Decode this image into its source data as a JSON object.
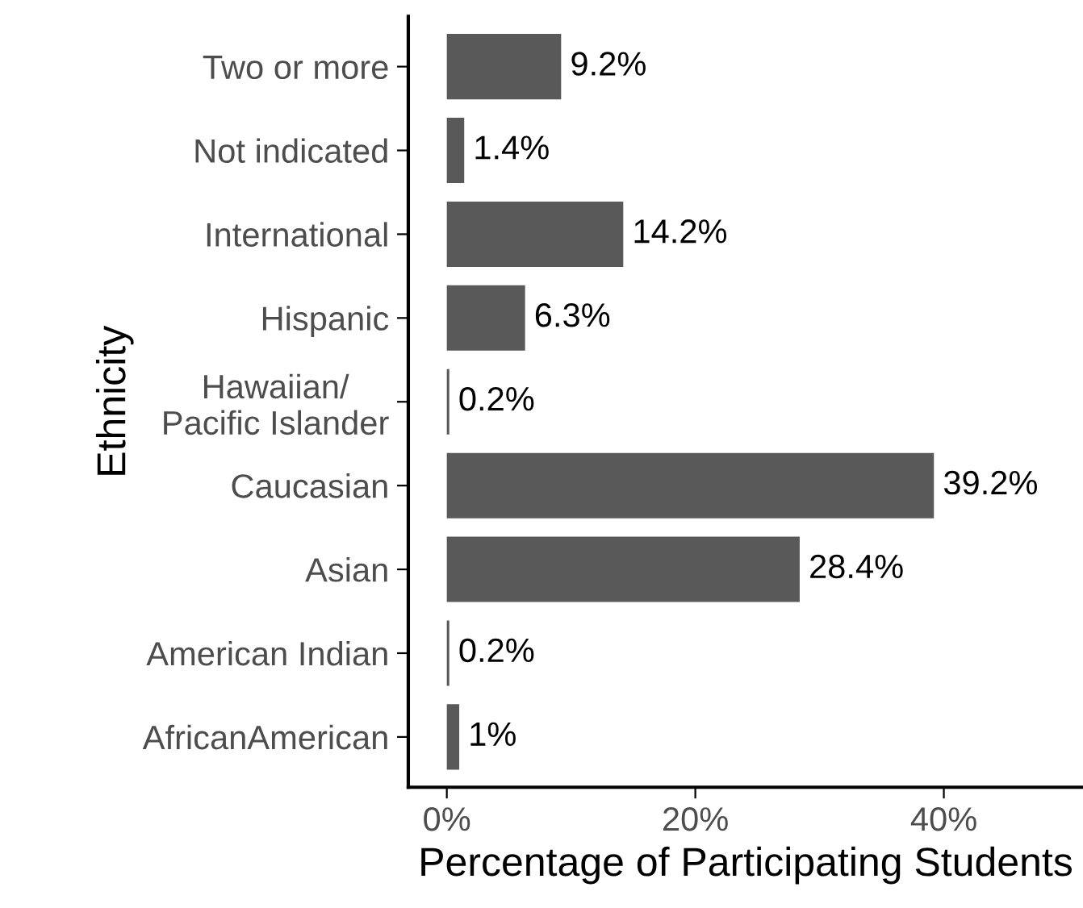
{
  "chart_data": {
    "type": "bar",
    "orientation": "horizontal",
    "xlabel": "Percentage of Participating Students",
    "ylabel": "Ethnicity",
    "categories": [
      "Two or more",
      "Not indicated",
      "International",
      "Hispanic",
      "Hawaiian/\nPacific Islander",
      "Caucasian",
      "Asian",
      "American Indian",
      "AfricanAmerican"
    ],
    "values": [
      9.2,
      1.4,
      14.2,
      6.3,
      0.2,
      39.2,
      28.4,
      0.2,
      1
    ],
    "value_labels": [
      "9.2%",
      "1.4%",
      "14.2%",
      "6.3%",
      "0.2%",
      "39.2%",
      "28.4%",
      "0.2%",
      "1%"
    ],
    "color": "#595959",
    "xlim": [
      -3.1,
      51.2
    ],
    "xticks": [
      {
        "value": 0,
        "label": "0%"
      },
      {
        "value": 20,
        "label": "20%"
      },
      {
        "value": 40,
        "label": "40%"
      }
    ],
    "grid": false
  }
}
